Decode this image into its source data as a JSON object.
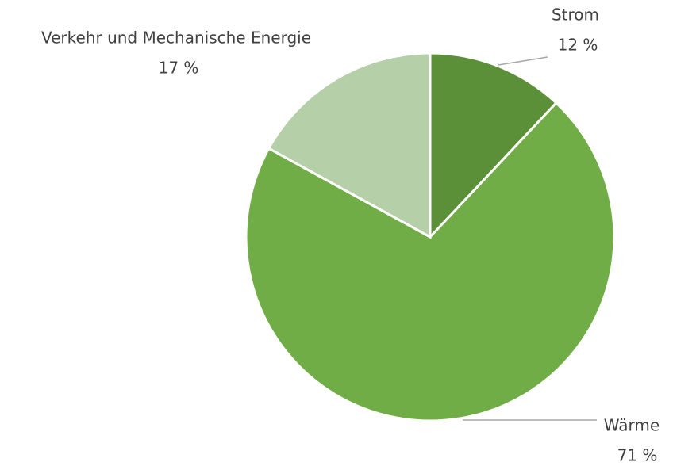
{
  "chart_data": {
    "type": "pie",
    "categories": [
      "Strom",
      "Wärme",
      "Verkehr und Mechanische Energie"
    ],
    "values": [
      12,
      71,
      17
    ],
    "value_labels": [
      "12 %",
      "71 %",
      "17 %"
    ],
    "colors": [
      "#5b9039",
      "#70ad47",
      "#b5cfa8"
    ]
  }
}
